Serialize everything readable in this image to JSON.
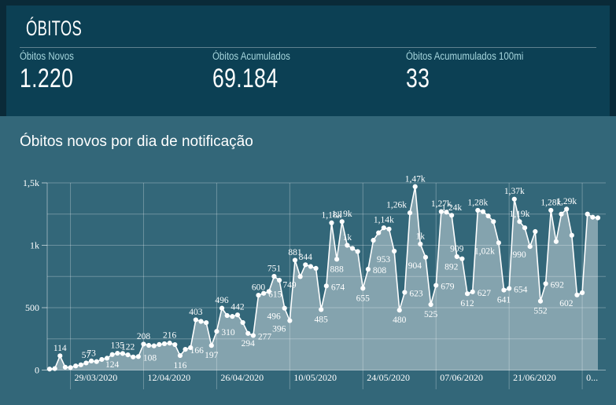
{
  "header": {
    "title": "ÓBITOS"
  },
  "stats": [
    {
      "label": "Óbitos Novos",
      "value": "1.220"
    },
    {
      "label": "Óbitos Acumulados",
      "value": "69.184"
    },
    {
      "label": "Óbitos Acumumulados 100mi",
      "value": "33"
    }
  ],
  "colors": {
    "page_background": "#0a2a38",
    "stats_card_background": "#0c4054",
    "chart_card_background": "#336779",
    "stat_label_text": "#a5d5dc",
    "primary_text": "#ffffff",
    "series_line": "#ffffff",
    "series_area": "rgba(255,255,255,0.40)",
    "gridline": "rgba(255,255,255,0.28)"
  },
  "chart_data": {
    "type": "line",
    "title": "Óbitos novos por dia de notificação",
    "xlabel": "",
    "ylabel": "",
    "ylim": [
      0,
      1500
    ],
    "grid": true,
    "grid_step": 250,
    "legend_position": "none",
    "y_tick_values": [
      0,
      500,
      1000,
      1500
    ],
    "y_tick_labels": [
      "0",
      "500",
      "1k",
      "1,5k"
    ],
    "x_tick_labels": [
      "29/03/2020",
      "12/04/2020",
      "26/04/2020",
      "10/05/2020",
      "24/05/2020",
      "07/06/2020",
      "21/06/2020",
      "0..."
    ],
    "x_tick_indices": [
      4,
      18,
      32,
      46,
      60,
      74,
      88,
      102
    ],
    "points": [
      {
        "v": 8
      },
      {
        "v": 12
      },
      {
        "v": 114,
        "l": "114",
        "s": "a"
      },
      {
        "v": 23
      },
      {
        "v": 20
      },
      {
        "v": 33
      },
      {
        "v": 42
      },
      {
        "v": 57,
        "l": "57",
        "s": "a"
      },
      {
        "v": 73,
        "l": "73",
        "s": "a"
      },
      {
        "v": 68
      },
      {
        "v": 85
      },
      {
        "v": 95
      },
      {
        "v": 124,
        "l": "124",
        "s": "b"
      },
      {
        "v": 135,
        "l": "135",
        "s": "a"
      },
      {
        "v": 133
      },
      {
        "v": 122,
        "l": "122",
        "s": "a"
      },
      {
        "v": 105
      },
      {
        "v": 108,
        "l": "108",
        "s": "br"
      },
      {
        "v": 208,
        "l": "208",
        "s": "a"
      },
      {
        "v": 198
      },
      {
        "v": 194
      },
      {
        "v": 205
      },
      {
        "v": 211
      },
      {
        "v": 216,
        "l": "216",
        "s": "a"
      },
      {
        "v": 204
      },
      {
        "v": 116,
        "l": "116",
        "s": "b"
      },
      {
        "v": 166,
        "l": "166",
        "s": "br"
      },
      {
        "v": 180
      },
      {
        "v": 403,
        "l": "403",
        "s": "a"
      },
      {
        "v": 390
      },
      {
        "v": 380
      },
      {
        "v": 197,
        "l": "197",
        "s": "b"
      },
      {
        "v": 310,
        "l": "310",
        "s": "br"
      },
      {
        "v": 496,
        "l": "496",
        "s": "a"
      },
      {
        "v": 437
      },
      {
        "v": 430
      },
      {
        "v": 442,
        "l": "442",
        "s": "a"
      },
      {
        "v": 381
      },
      {
        "v": 294,
        "l": "294",
        "s": "b"
      },
      {
        "v": 277,
        "l": "277",
        "s": "br"
      },
      {
        "v": 600,
        "l": "600",
        "s": "a"
      },
      {
        "v": 615,
        "l": "615",
        "s": "br"
      },
      {
        "v": 630
      },
      {
        "v": 751,
        "l": "751",
        "s": "a"
      },
      {
        "v": 720
      },
      {
        "v": 496,
        "l": "496",
        "s": "bl"
      },
      {
        "v": 396,
        "l": "396",
        "s": "bl"
      },
      {
        "v": 881,
        "l": "881",
        "s": "a"
      },
      {
        "v": 749,
        "l": "749",
        "s": "bl"
      },
      {
        "v": 844,
        "l": "844",
        "s": "a"
      },
      {
        "v": 830
      },
      {
        "v": 815
      },
      {
        "v": 485,
        "l": "485",
        "s": "b"
      },
      {
        "v": 674,
        "l": "674",
        "s": "br"
      },
      {
        "v": 1180,
        "l": "1,18k",
        "s": "a"
      },
      {
        "v": 888,
        "l": "888",
        "s": "b"
      },
      {
        "v": 1190,
        "l": "1,19k",
        "s": "a"
      },
      {
        "v": 1000,
        "l": "1k",
        "s": "a"
      },
      {
        "v": 975
      },
      {
        "v": 950
      },
      {
        "v": 655,
        "l": "655",
        "s": "b"
      },
      {
        "v": 808,
        "l": "808",
        "s": "br"
      },
      {
        "v": 1040
      },
      {
        "v": 1100
      },
      {
        "v": 1140,
        "l": "1,14k",
        "s": "a"
      },
      {
        "v": 1130
      },
      {
        "v": 953,
        "l": "953",
        "s": "bl"
      },
      {
        "v": 480,
        "l": "480",
        "s": "b"
      },
      {
        "v": 623,
        "l": "623",
        "s": "br"
      },
      {
        "v": 1260,
        "l": "1,26k",
        "s": "al"
      },
      {
        "v": 1470,
        "l": "1,47k",
        "s": "a"
      },
      {
        "v": 1010,
        "l": "1k",
        "s": "a"
      },
      {
        "v": 904,
        "l": "904",
        "s": "bl"
      },
      {
        "v": 525,
        "l": "525",
        "s": "b"
      },
      {
        "v": 679,
        "l": "679",
        "s": "br"
      },
      {
        "v": 1270,
        "l": "1,27k",
        "s": "a"
      },
      {
        "v": 1265
      },
      {
        "v": 1240,
        "l": "1,24k",
        "s": "a"
      },
      {
        "v": 909,
        "l": "909",
        "s": "a"
      },
      {
        "v": 892,
        "l": "892",
        "s": "bl"
      },
      {
        "v": 612,
        "l": "612",
        "s": "b"
      },
      {
        "v": 627,
        "l": "627",
        "s": "br"
      },
      {
        "v": 1280,
        "l": "1,28k",
        "s": "a"
      },
      {
        "v": 1270
      },
      {
        "v": 1235
      },
      {
        "v": 1190
      },
      {
        "v": 1020,
        "l": "1,02k",
        "s": "bl"
      },
      {
        "v": 641,
        "l": "641",
        "s": "b"
      },
      {
        "v": 654,
        "l": "654",
        "s": "br"
      },
      {
        "v": 1370,
        "l": "1,37k",
        "s": "a"
      },
      {
        "v": 1190,
        "l": "1,19k",
        "s": "a"
      },
      {
        "v": 1140
      },
      {
        "v": 990,
        "l": "990",
        "s": "bl"
      },
      {
        "v": 1110
      },
      {
        "v": 552,
        "l": "552",
        "s": "b"
      },
      {
        "v": 692,
        "l": "692",
        "s": "br"
      },
      {
        "v": 1280,
        "l": "1,28k",
        "s": "a"
      },
      {
        "v": 1030
      },
      {
        "v": 1250
      },
      {
        "v": 1290,
        "l": "1,29k",
        "s": "a"
      },
      {
        "v": 1080
      },
      {
        "v": 602,
        "l": "602",
        "s": "bl"
      },
      {
        "v": 620
      },
      {
        "v": 1250
      },
      {
        "v": 1225
      },
      {
        "v": 1220
      }
    ]
  }
}
